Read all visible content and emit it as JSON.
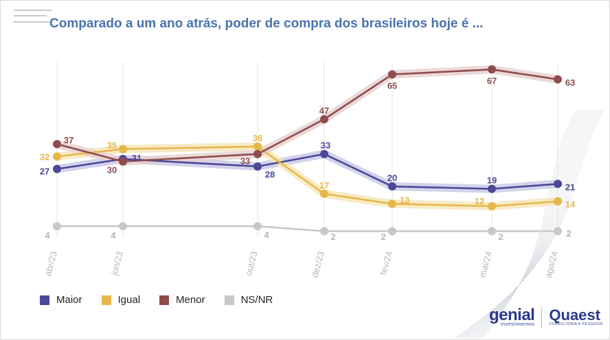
{
  "title": "Comparado a um ano atrás, poder de compra dos brasileiros hoje é ...",
  "chart_data": {
    "type": "line",
    "title": "Comparado a um ano atrás, poder de compra dos brasileiros hoje é ...",
    "categories": [
      "abr/23",
      "jun/23",
      "out/23",
      "dez/23",
      "fev/24",
      "mai/24",
      "ago/24"
    ],
    "series": [
      {
        "name": "Maior",
        "color": "#4b4797",
        "values": [
          27,
          31,
          28,
          33,
          20,
          19,
          21
        ]
      },
      {
        "name": "Igual",
        "color": "#e6b84a",
        "values": [
          32,
          35,
          36,
          17,
          13,
          12,
          14
        ]
      },
      {
        "name": "Menor",
        "color": "#8f4c4c",
        "values": [
          37,
          30,
          33,
          47,
          65,
          67,
          63
        ]
      },
      {
        "name": "NS/NR",
        "color": "#c8c8c8",
        "values": [
          4,
          4,
          4,
          2,
          2,
          2,
          2
        ]
      }
    ],
    "grid": "vertical",
    "legend_position": "bottom-left"
  },
  "legend": [
    {
      "label": "Maior",
      "color": "#4b4797"
    },
    {
      "label": "Igual",
      "color": "#e6b84a"
    },
    {
      "label": "Menor",
      "color": "#8f4c4c"
    },
    {
      "label": "NS/NR",
      "color": "#c8c8c8"
    }
  ],
  "logos": {
    "genial": "genial",
    "genial_sub": "investimentos",
    "quaest": "Quaest",
    "quaest_sub": "CONSULTORIA E PESQUISA"
  }
}
